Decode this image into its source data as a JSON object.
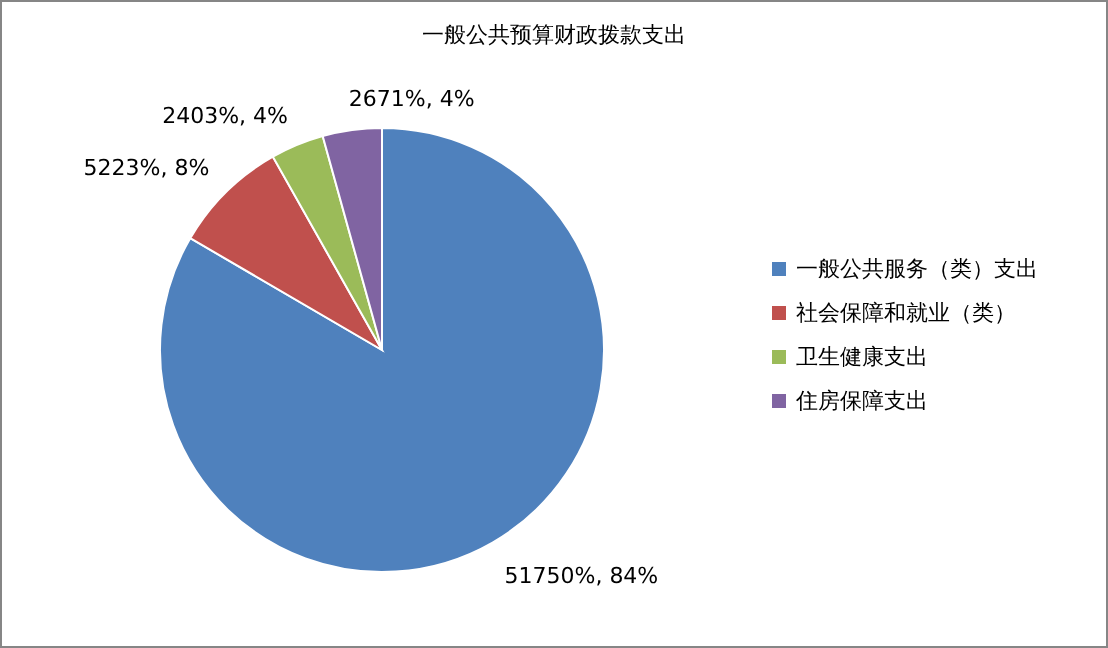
{
  "chart_data": {
    "type": "pie",
    "title": "一般公共预算财政拨款支出",
    "categories": [
      "一般公共服务（类）支出",
      "社会保障和就业（类）",
      "卫生健康支出",
      "住房保障支出"
    ],
    "values": [
      51750,
      5223,
      2403,
      2671
    ],
    "colors": [
      "#4f81bd",
      "#c0504d",
      "#9bbb59",
      "#8064a2"
    ],
    "value_labels": [
      "51750%, 84%",
      "5223%, 8%",
      "2403%, 4%",
      "2671%, 4%"
    ],
    "legend": "right"
  }
}
